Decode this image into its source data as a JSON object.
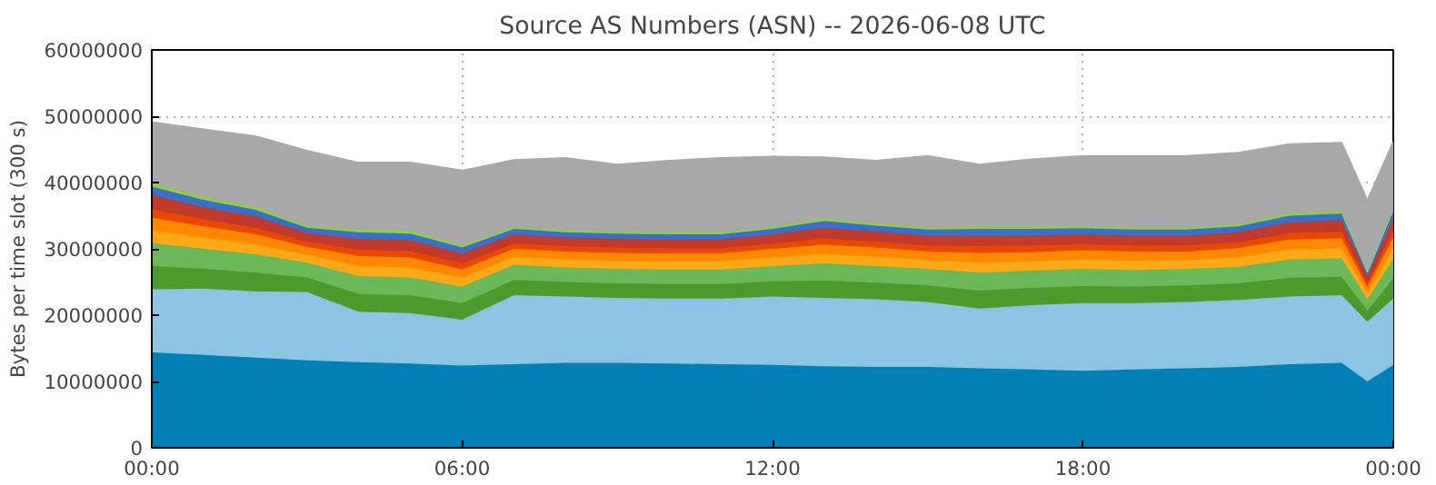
{
  "chart_data": {
    "type": "area",
    "stacked": true,
    "title": "Source AS Numbers (ASN) -- 2026-06-08 UTC",
    "ylabel": "Bytes per time slot (300 s)",
    "x": [
      0,
      1,
      2,
      3,
      4,
      5,
      6,
      7,
      8,
      9,
      10,
      11,
      12,
      13,
      14,
      15,
      16,
      17,
      18,
      19,
      20,
      21,
      22,
      23,
      23.5,
      24
    ],
    "xlim": [
      0,
      24
    ],
    "xticks": [
      {
        "value": 0,
        "label": "00:00"
      },
      {
        "value": 6,
        "label": "06:00"
      },
      {
        "value": 12,
        "label": "12:00"
      },
      {
        "value": 18,
        "label": "18:00"
      },
      {
        "value": 24,
        "label": "00:00"
      }
    ],
    "ylim": [
      0,
      60000000
    ],
    "yticks": [
      0,
      10000000,
      20000000,
      30000000,
      40000000,
      50000000,
      60000000
    ],
    "grid": true,
    "series": [
      {
        "color": "#0080b4",
        "values": [
          14400000.0,
          14000000.0,
          13600000.0,
          13200000.0,
          12900000.0,
          12700000.0,
          12400000.0,
          12600000.0,
          12800000.0,
          12800000.0,
          12700000.0,
          12600000.0,
          12500000.0,
          12300000.0,
          12200000.0,
          12200000.0,
          12000000.0,
          11800000.0,
          11600000.0,
          11800000.0,
          12000000.0,
          12200000.0,
          12600000.0,
          12800000.0,
          10000000.0,
          12500000.0
        ]
      },
      {
        "color": "#8cc4e4",
        "values": [
          9500000.0,
          10000000.0,
          10000000.0,
          10300000.0,
          7600000.0,
          7600000.0,
          6900000.0,
          10400000.0,
          10000000.0,
          9800000.0,
          9800000.0,
          9900000.0,
          10300000.0,
          10300000.0,
          10200000.0,
          9800000.0,
          9000000.0,
          9700000.0,
          10200000.0,
          10000000.0,
          10000000.0,
          10100000.0,
          10200000.0,
          10200000.0,
          9000000.0,
          10000000.0
        ]
      },
      {
        "color": "#4a9a2c",
        "values": [
          3500000.0,
          3000000.0,
          2800000.0,
          2200000.0,
          2700000.0,
          2700000.0,
          2500000.0,
          2300000.0,
          2200000.0,
          2200000.0,
          2200000.0,
          2200000.0,
          2300000.0,
          2600000.0,
          2500000.0,
          2500000.0,
          2700000.0,
          2600000.0,
          2600000.0,
          2500000.0,
          2500000.0,
          2500000.0,
          2800000.0,
          2800000.0,
          1700000.0,
          3000000.0
        ]
      },
      {
        "color": "#6ab858",
        "values": [
          3500000.0,
          3000000.0,
          2800000.0,
          2200000.0,
          2700000.0,
          2700000.0,
          2500000.0,
          2300000.0,
          2200000.0,
          2200000.0,
          2200000.0,
          2200000.0,
          2300000.0,
          2600000.0,
          2500000.0,
          2500000.0,
          2700000.0,
          2600000.0,
          2600000.0,
          2500000.0,
          2500000.0,
          2500000.0,
          2800000.0,
          2800000.0,
          1700000.0,
          3000000.0
        ]
      },
      {
        "color": "#ffa818",
        "values": [
          1900000.0,
          1700000.0,
          1500000.0,
          1200000.0,
          1500000.0,
          1500000.0,
          1300000.0,
          1200000.0,
          1200000.0,
          1200000.0,
          1200000.0,
          1200000.0,
          1300000.0,
          1400000.0,
          1400000.0,
          1300000.0,
          1500000.0,
          1400000.0,
          1400000.0,
          1400000.0,
          1300000.0,
          1400000.0,
          1500000.0,
          1500000.0,
          900000.0,
          1600000.0
        ]
      },
      {
        "color": "#ff8800",
        "values": [
          1900000.0,
          1700000.0,
          1500000.0,
          1200000.0,
          1500000.0,
          1500000.0,
          1300000.0,
          1200000.0,
          1200000.0,
          1200000.0,
          1200000.0,
          1200000.0,
          1300000.0,
          1400000.0,
          1400000.0,
          1300000.0,
          1500000.0,
          1400000.0,
          1400000.0,
          1400000.0,
          1300000.0,
          1400000.0,
          1500000.0,
          1500000.0,
          900000.0,
          1600000.0
        ]
      },
      {
        "color": "#e84800",
        "values": [
          1300000.0,
          1100000.0,
          1000000.0,
          800000.0,
          1000000.0,
          1000000.0,
          900000.0,
          800000.0,
          800000.0,
          800000.0,
          800000.0,
          800000.0,
          800000.0,
          1000000.0,
          900000.0,
          900000.0,
          1000000.0,
          1000000.0,
          900000.0,
          900000.0,
          900000.0,
          900000.0,
          1000000.0,
          1000000.0,
          600000.0,
          1100000.0
        ]
      },
      {
        "color": "#c0392b",
        "values": [
          2100000.0,
          1800000.0,
          1700000.0,
          1300000.0,
          1600000.0,
          1600000.0,
          1500000.0,
          1400000.0,
          1300000.0,
          1300000.0,
          1300000.0,
          1300000.0,
          1400000.0,
          1600000.0,
          1500000.0,
          1500000.0,
          1600000.0,
          1500000.0,
          1500000.0,
          1500000.0,
          1500000.0,
          1500000.0,
          1600000.0,
          1700000.0,
          1000000.0,
          1800000.0
        ]
      },
      {
        "color": "#3a6fc8",
        "values": [
          1300000.0,
          1100000.0,
          1000000.0,
          800000.0,
          1000000.0,
          1000000.0,
          900000.0,
          800000.0,
          800000.0,
          800000.0,
          800000.0,
          800000.0,
          800000.0,
          1000000.0,
          900000.0,
          900000.0,
          1000000.0,
          1000000.0,
          900000.0,
          900000.0,
          900000.0,
          900000.0,
          1000000.0,
          1000000.0,
          600000.0,
          1100000.0
        ]
      },
      {
        "color": "#90d040",
        "values": [
          500000.0,
          400000.0,
          400000.0,
          300000.0,
          400000.0,
          400000.0,
          300000.0,
          300000.0,
          300000.0,
          300000.0,
          300000.0,
          300000.0,
          300000.0,
          400000.0,
          300000.0,
          300000.0,
          400000.0,
          400000.0,
          300000.0,
          300000.0,
          300000.0,
          300000.0,
          400000.0,
          400000.0,
          200000.0,
          400000.0
        ]
      },
      {
        "color": "#a8a8a8",
        "values": [
          9200000.0,
          10200000.0,
          10700000.0,
          11300000.0,
          10100000.0,
          10300000.0,
          11300000.0,
          10100000.0,
          10900000.0,
          10100000.0,
          10800000.0,
          11200000.0,
          10600000.0,
          9200000.0,
          9500000.0,
          10800000.0,
          9300000.0,
          10100000.0,
          10600000.0,
          10800000.0,
          10800000.0,
          10800000.0,
          10400000.0,
          10300000.0,
          10700000.0,
          10000000.0
        ]
      }
    ]
  }
}
